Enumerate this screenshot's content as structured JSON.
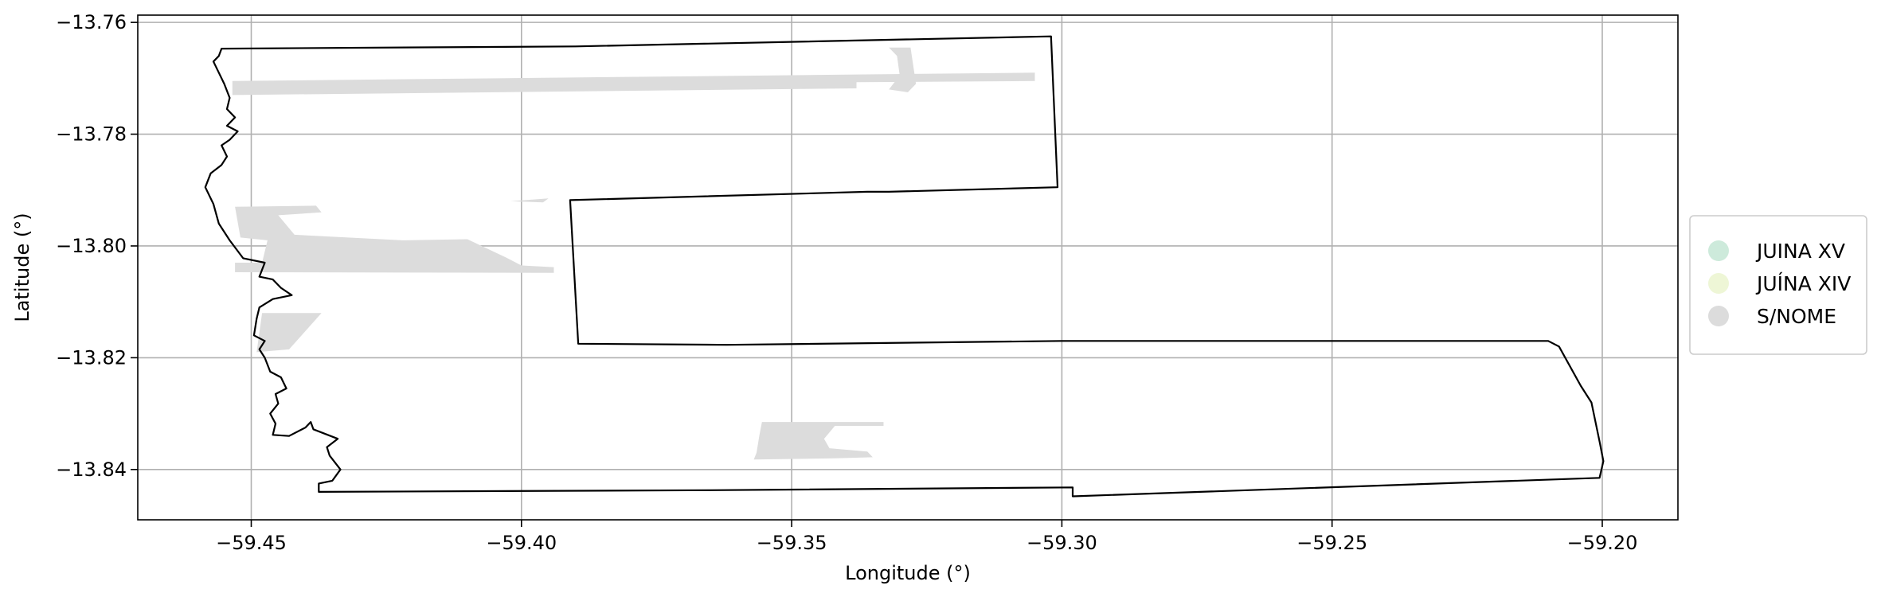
{
  "chart_data": {
    "type": "map",
    "xlabel": "Longitude (°)",
    "ylabel": "Latitude (°)",
    "xlim": [
      -59.471,
      -59.186
    ],
    "ylim": [
      -13.849,
      -13.7587
    ],
    "x_ticks": [
      -59.45,
      -59.4,
      -59.35,
      -59.3,
      -59.25,
      -59.2
    ],
    "x_tick_labels": [
      "−59.45",
      "−59.40",
      "−59.35",
      "−59.30",
      "−59.25",
      "−59.20"
    ],
    "y_ticks": [
      -13.76,
      -13.78,
      -13.8,
      -13.82,
      -13.84
    ],
    "y_tick_labels": [
      "−13.76",
      "−13.78",
      "−13.80",
      "−13.82",
      "−13.84"
    ],
    "grid": true,
    "legend": {
      "placement": "right-outside",
      "entries": [
        {
          "label": "JUINA XV",
          "color": "#cdeadb"
        },
        {
          "label": "JUÍNA XIV",
          "color": "#eef6d6"
        },
        {
          "label": "S/NOME",
          "color": "#dcdcdc"
        }
      ]
    },
    "boundary": [
      [
        -59.4555,
        -13.7647
      ],
      [
        -59.39,
        -13.7643
      ],
      [
        -59.302,
        -13.7625
      ],
      [
        -59.3008,
        -13.7895
      ],
      [
        -59.332,
        -13.7903
      ],
      [
        -59.336,
        -13.7903
      ],
      [
        -59.391,
        -13.7918
      ],
      [
        -59.3895,
        -13.8175
      ],
      [
        -59.362,
        -13.8177
      ],
      [
        -59.3,
        -13.817
      ],
      [
        -59.21,
        -13.817
      ],
      [
        -59.208,
        -13.818
      ],
      [
        -59.204,
        -13.825
      ],
      [
        -59.202,
        -13.828
      ],
      [
        -59.2005,
        -13.835
      ],
      [
        -59.1998,
        -13.8385
      ],
      [
        -59.2005,
        -13.8415
      ],
      [
        -59.298,
        -13.8448
      ],
      [
        -59.298,
        -13.8432
      ],
      [
        -59.365,
        -13.8437
      ],
      [
        -59.4375,
        -13.844
      ],
      [
        -59.4375,
        -13.8425
      ],
      [
        -59.435,
        -13.842
      ],
      [
        -59.4335,
        -13.84
      ],
      [
        -59.4355,
        -13.8375
      ],
      [
        -59.436,
        -13.836
      ],
      [
        -59.434,
        -13.8345
      ],
      [
        -59.4385,
        -13.8328
      ],
      [
        -59.439,
        -13.8315
      ],
      [
        -59.44,
        -13.8325
      ],
      [
        -59.443,
        -13.834
      ],
      [
        -59.446,
        -13.8338
      ],
      [
        -59.4455,
        -13.8318
      ],
      [
        -59.4465,
        -13.83
      ],
      [
        -59.445,
        -13.8282
      ],
      [
        -59.4455,
        -13.8265
      ],
      [
        -59.4435,
        -13.8255
      ],
      [
        -59.4445,
        -13.8235
      ],
      [
        -59.4465,
        -13.8225
      ],
      [
        -59.4475,
        -13.82
      ],
      [
        -59.4485,
        -13.8185
      ],
      [
        -59.4475,
        -13.817
      ],
      [
        -59.4495,
        -13.816
      ],
      [
        -59.449,
        -13.813
      ],
      [
        -59.4485,
        -13.811
      ],
      [
        -59.446,
        -13.8095
      ],
      [
        -59.4425,
        -13.8088
      ],
      [
        -59.4445,
        -13.8075
      ],
      [
        -59.446,
        -13.806
      ],
      [
        -59.4485,
        -13.8055
      ],
      [
        -59.4475,
        -13.803
      ],
      [
        -59.4515,
        -13.8022
      ],
      [
        -59.454,
        -13.799
      ],
      [
        -59.456,
        -13.796
      ],
      [
        -59.457,
        -13.7925
      ],
      [
        -59.4585,
        -13.7895
      ],
      [
        -59.4575,
        -13.787
      ],
      [
        -59.4555,
        -13.7855
      ],
      [
        -59.4545,
        -13.784
      ],
      [
        -59.4555,
        -13.782
      ],
      [
        -59.454,
        -13.781
      ],
      [
        -59.4525,
        -13.7795
      ],
      [
        -59.4545,
        -13.7785
      ],
      [
        -59.453,
        -13.777
      ],
      [
        -59.4545,
        -13.7755
      ],
      [
        -59.454,
        -13.7735
      ],
      [
        -59.455,
        -13.771
      ],
      [
        -59.456,
        -13.769
      ],
      [
        -59.457,
        -13.767
      ],
      [
        -59.456,
        -13.766
      ],
      [
        -59.4555,
        -13.7647
      ]
    ],
    "regions": [
      {
        "class": "S/NOME",
        "points": [
          [
            -59.4535,
            -13.7705
          ],
          [
            -59.305,
            -13.769
          ],
          [
            -59.305,
            -13.7705
          ],
          [
            -59.338,
            -13.7707
          ],
          [
            -59.338,
            -13.7718
          ],
          [
            -59.4535,
            -13.773
          ]
        ]
      },
      {
        "class": "S/NOME",
        "points": [
          [
            -59.332,
            -13.7645
          ],
          [
            -59.328,
            -13.7645
          ],
          [
            -59.327,
            -13.771
          ],
          [
            -59.3285,
            -13.7725
          ],
          [
            -59.332,
            -13.772
          ],
          [
            -59.33,
            -13.7695
          ],
          [
            -59.3305,
            -13.766
          ]
        ]
      },
      {
        "class": "S/NOME",
        "points": [
          [
            -59.453,
            -13.793
          ],
          [
            -59.438,
            -13.7928
          ],
          [
            -59.437,
            -13.794
          ],
          [
            -59.445,
            -13.7945
          ],
          [
            -59.442,
            -13.798
          ],
          [
            -59.422,
            -13.799
          ],
          [
            -59.41,
            -13.7988
          ],
          [
            -59.403,
            -13.802
          ],
          [
            -59.4,
            -13.8035
          ],
          [
            -59.394,
            -13.8038
          ],
          [
            -59.394,
            -13.8048
          ],
          [
            -59.453,
            -13.8047
          ],
          [
            -59.453,
            -13.803
          ],
          [
            -59.448,
            -13.803
          ],
          [
            -59.447,
            -13.799
          ],
          [
            -59.452,
            -13.7985
          ]
        ]
      },
      {
        "class": "S/NOME",
        "points": [
          [
            -59.402,
            -13.792
          ],
          [
            -59.395,
            -13.7915
          ],
          [
            -59.396,
            -13.7922
          ]
        ]
      },
      {
        "class": "S/NOME",
        "points": [
          [
            -59.448,
            -13.812
          ],
          [
            -59.437,
            -13.812
          ],
          [
            -59.443,
            -13.8185
          ],
          [
            -59.449,
            -13.819
          ]
        ]
      },
      {
        "class": "S/NOME",
        "points": [
          [
            -59.3555,
            -13.8315
          ],
          [
            -59.333,
            -13.8315
          ],
          [
            -59.333,
            -13.8322
          ],
          [
            -59.342,
            -13.8322
          ],
          [
            -59.344,
            -13.8345
          ],
          [
            -59.343,
            -13.8362
          ],
          [
            -59.336,
            -13.8368
          ],
          [
            -59.335,
            -13.8378
          ],
          [
            -59.342,
            -13.838
          ],
          [
            -59.357,
            -13.8382
          ],
          [
            -59.3565,
            -13.837
          ],
          [
            -59.356,
            -13.834
          ]
        ]
      }
    ]
  }
}
